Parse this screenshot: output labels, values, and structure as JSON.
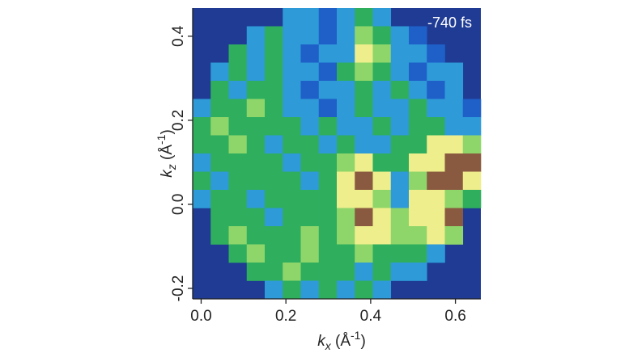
{
  "chart_data": {
    "type": "heatmap",
    "annotation": "-740 fs",
    "xlabel": {
      "main": "k",
      "sub": "x",
      "open": " (Å",
      "sup": "-1",
      "close": ")"
    },
    "ylabel": {
      "main": "k",
      "sub": "z",
      "open": " (Å",
      "sup": "-1",
      "close": ")"
    },
    "xlim": [
      -0.02,
      0.66
    ],
    "ylim": [
      -0.225,
      0.467
    ],
    "xticks": [
      {
        "value": 0,
        "label": "0.0"
      },
      0.2,
      0.4,
      0.6
    ],
    "yticks": [
      -0.2,
      {
        "value": 0,
        "label": "0.0"
      },
      0.2,
      0.4
    ],
    "background": "#1f3b94",
    "zlim": [
      1,
      6
    ],
    "colors": [
      "#1f5fc8",
      "#2e9ad8",
      "#2fae5e",
      "#8fd66a",
      "#eeee8c",
      "#8a5a40"
    ],
    "z": [
      [
        null,
        null,
        null,
        null,
        null,
        2,
        2,
        1,
        2,
        3,
        2,
        null,
        null,
        null,
        null,
        null
      ],
      [
        null,
        null,
        null,
        2,
        3,
        2,
        2,
        1,
        2,
        4,
        3,
        2,
        1,
        null,
        null,
        null
      ],
      [
        null,
        null,
        3,
        2,
        3,
        2,
        1,
        2,
        2,
        5,
        4,
        2,
        2,
        1,
        null,
        null
      ],
      [
        null,
        2,
        3,
        2,
        3,
        2,
        2,
        1,
        3,
        4,
        3,
        2,
        1,
        2,
        2,
        null
      ],
      [
        null,
        3,
        2,
        3,
        3,
        2,
        1,
        2,
        2,
        3,
        2,
        3,
        2,
        1,
        2,
        null
      ],
      [
        2,
        3,
        3,
        4,
        3,
        2,
        2,
        1,
        2,
        3,
        2,
        2,
        3,
        2,
        2,
        1
      ],
      [
        3,
        4,
        3,
        3,
        3,
        3,
        2,
        3,
        2,
        2,
        3,
        2,
        3,
        3,
        2,
        2
      ],
      [
        3,
        3,
        4,
        3,
        2,
        3,
        3,
        2,
        3,
        2,
        2,
        3,
        3,
        5,
        5,
        4
      ],
      [
        2,
        3,
        3,
        3,
        3,
        2,
        3,
        3,
        4,
        5,
        3,
        3,
        5,
        5,
        6,
        6
      ],
      [
        3,
        2,
        3,
        3,
        3,
        3,
        2,
        3,
        5,
        6,
        5,
        2,
        4,
        6,
        6,
        5
      ],
      [
        2,
        3,
        3,
        2,
        3,
        3,
        3,
        3,
        5,
        5,
        4,
        2,
        5,
        5,
        4,
        3
      ],
      [
        null,
        3,
        3,
        3,
        2,
        3,
        3,
        3,
        4,
        6,
        5,
        4,
        5,
        5,
        6,
        null
      ],
      [
        null,
        3,
        4,
        3,
        3,
        3,
        4,
        3,
        4,
        5,
        5,
        4,
        4,
        5,
        4,
        null
      ],
      [
        null,
        null,
        3,
        4,
        3,
        3,
        4,
        3,
        3,
        4,
        3,
        3,
        3,
        2,
        null,
        null
      ],
      [
        null,
        null,
        null,
        3,
        3,
        4,
        3,
        3,
        3,
        2,
        3,
        2,
        2,
        null,
        null,
        null
      ],
      [
        null,
        null,
        null,
        null,
        2,
        3,
        2,
        3,
        2,
        3,
        2,
        null,
        null,
        null,
        null,
        null
      ]
    ]
  }
}
